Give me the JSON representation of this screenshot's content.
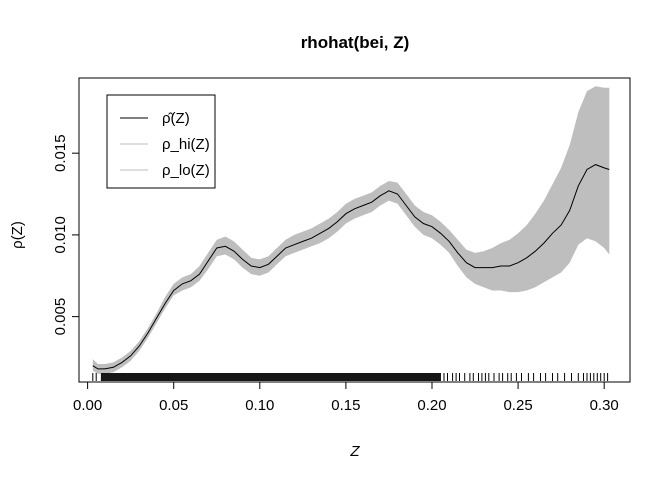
{
  "chart_data": {
    "type": "line",
    "title": "rhohat(bei, Z)",
    "xlabel": "Z",
    "ylabel": "ρ(Z)",
    "xlim": [
      -0.005,
      0.315
    ],
    "ylim": [
      0.001,
      0.0196
    ],
    "x_ticks": [
      0.0,
      0.05,
      0.1,
      0.15,
      0.2,
      0.25,
      0.3
    ],
    "x_tick_labels": [
      "0.00",
      "0.05",
      "0.10",
      "0.15",
      "0.20",
      "0.25",
      "0.30"
    ],
    "y_ticks": [
      0.005,
      0.01,
      0.015
    ],
    "y_tick_labels": [
      "0.005",
      "0.010",
      "0.015"
    ],
    "legend": {
      "position": "top-left",
      "entries": [
        {
          "label": "ρ̂(Z)",
          "color": "#000000"
        },
        {
          "label": "ρ_hi(Z)",
          "color": "#bebebe"
        },
        {
          "label": "ρ_lo(Z)",
          "color": "#bebebe"
        }
      ]
    },
    "series": [
      {
        "name": "ρ̂(Z)",
        "color": "#000000",
        "x": [
          0.003,
          0.006,
          0.01,
          0.015,
          0.02,
          0.025,
          0.03,
          0.035,
          0.04,
          0.045,
          0.05,
          0.055,
          0.06,
          0.065,
          0.07,
          0.075,
          0.08,
          0.085,
          0.09,
          0.095,
          0.1,
          0.105,
          0.11,
          0.115,
          0.12,
          0.125,
          0.13,
          0.135,
          0.14,
          0.145,
          0.15,
          0.155,
          0.16,
          0.165,
          0.17,
          0.175,
          0.18,
          0.185,
          0.19,
          0.195,
          0.2,
          0.205,
          0.21,
          0.215,
          0.22,
          0.225,
          0.23,
          0.235,
          0.24,
          0.245,
          0.25,
          0.255,
          0.26,
          0.265,
          0.27,
          0.275,
          0.28,
          0.285,
          0.29,
          0.295,
          0.3,
          0.303
        ],
        "y": [
          0.002,
          0.0018,
          0.0018,
          0.0019,
          0.0022,
          0.0026,
          0.0032,
          0.004,
          0.0049,
          0.0058,
          0.0066,
          0.007,
          0.0072,
          0.0076,
          0.0084,
          0.0092,
          0.0093,
          0.009,
          0.0085,
          0.0081,
          0.008,
          0.0082,
          0.0087,
          0.0092,
          0.0094,
          0.0096,
          0.0098,
          0.0101,
          0.0104,
          0.0108,
          0.0113,
          0.0116,
          0.0118,
          0.012,
          0.0124,
          0.0127,
          0.0125,
          0.0118,
          0.0111,
          0.0107,
          0.0105,
          0.0101,
          0.0096,
          0.0089,
          0.0083,
          0.008,
          0.008,
          0.008,
          0.0081,
          0.0081,
          0.0083,
          0.0086,
          0.009,
          0.0095,
          0.0101,
          0.0106,
          0.0115,
          0.013,
          0.014,
          0.0143,
          0.0141,
          0.014
        ]
      },
      {
        "name": "ρ_hi(Z)",
        "color": "#bebebe",
        "x": [
          0.003,
          0.006,
          0.01,
          0.015,
          0.02,
          0.025,
          0.03,
          0.035,
          0.04,
          0.045,
          0.05,
          0.055,
          0.06,
          0.065,
          0.07,
          0.075,
          0.08,
          0.085,
          0.09,
          0.095,
          0.1,
          0.105,
          0.11,
          0.115,
          0.12,
          0.125,
          0.13,
          0.135,
          0.14,
          0.145,
          0.15,
          0.155,
          0.16,
          0.165,
          0.17,
          0.175,
          0.18,
          0.185,
          0.19,
          0.195,
          0.2,
          0.205,
          0.21,
          0.215,
          0.22,
          0.225,
          0.23,
          0.235,
          0.24,
          0.245,
          0.25,
          0.255,
          0.26,
          0.265,
          0.27,
          0.275,
          0.28,
          0.285,
          0.29,
          0.295,
          0.3,
          0.303
        ],
        "y": [
          0.0024,
          0.0021,
          0.0021,
          0.0022,
          0.0025,
          0.0029,
          0.0035,
          0.0043,
          0.0052,
          0.0062,
          0.007,
          0.0074,
          0.0076,
          0.0081,
          0.0089,
          0.0097,
          0.0099,
          0.0096,
          0.0091,
          0.0086,
          0.0085,
          0.0087,
          0.0092,
          0.0097,
          0.01,
          0.0102,
          0.0104,
          0.0107,
          0.011,
          0.0114,
          0.0119,
          0.0122,
          0.0124,
          0.0126,
          0.013,
          0.0133,
          0.0132,
          0.0125,
          0.0118,
          0.0114,
          0.0112,
          0.0108,
          0.0103,
          0.0097,
          0.0091,
          0.0089,
          0.009,
          0.0092,
          0.0095,
          0.0097,
          0.0101,
          0.0106,
          0.0113,
          0.0121,
          0.0131,
          0.0141,
          0.0155,
          0.0175,
          0.0188,
          0.0191,
          0.019,
          0.019
        ]
      },
      {
        "name": "ρ_lo(Z)",
        "color": "#bebebe",
        "x": [
          0.003,
          0.006,
          0.01,
          0.015,
          0.02,
          0.025,
          0.03,
          0.035,
          0.04,
          0.045,
          0.05,
          0.055,
          0.06,
          0.065,
          0.07,
          0.075,
          0.08,
          0.085,
          0.09,
          0.095,
          0.1,
          0.105,
          0.11,
          0.115,
          0.12,
          0.125,
          0.13,
          0.135,
          0.14,
          0.145,
          0.15,
          0.155,
          0.16,
          0.165,
          0.17,
          0.175,
          0.18,
          0.185,
          0.19,
          0.195,
          0.2,
          0.205,
          0.21,
          0.215,
          0.22,
          0.225,
          0.23,
          0.235,
          0.24,
          0.245,
          0.25,
          0.255,
          0.26,
          0.265,
          0.27,
          0.275,
          0.28,
          0.285,
          0.29,
          0.295,
          0.3,
          0.303
        ],
        "y": [
          0.0017,
          0.0015,
          0.0015,
          0.0016,
          0.0019,
          0.0023,
          0.0029,
          0.0037,
          0.0046,
          0.0055,
          0.0063,
          0.0066,
          0.0068,
          0.0072,
          0.0079,
          0.0087,
          0.0088,
          0.0085,
          0.008,
          0.0076,
          0.0075,
          0.0077,
          0.0082,
          0.0087,
          0.0089,
          0.0091,
          0.0093,
          0.0095,
          0.0098,
          0.0102,
          0.0107,
          0.011,
          0.0112,
          0.0114,
          0.0118,
          0.0121,
          0.0119,
          0.0112,
          0.0105,
          0.01,
          0.0098,
          0.0094,
          0.0089,
          0.0081,
          0.0074,
          0.007,
          0.0068,
          0.0066,
          0.0066,
          0.0065,
          0.0065,
          0.0066,
          0.0068,
          0.0071,
          0.0074,
          0.0077,
          0.0083,
          0.0094,
          0.0098,
          0.0096,
          0.0092,
          0.0088
        ]
      }
    ],
    "rug": {
      "dense_range": [
        0.008,
        0.205
      ],
      "sparse_x": [
        0.003,
        0.005,
        0.207,
        0.209,
        0.212,
        0.214,
        0.216,
        0.219,
        0.222,
        0.224,
        0.227,
        0.229,
        0.231,
        0.233,
        0.236,
        0.239,
        0.241,
        0.244,
        0.246,
        0.249,
        0.252,
        0.256,
        0.259,
        0.263,
        0.266,
        0.27,
        0.273,
        0.277,
        0.281,
        0.285,
        0.288,
        0.29,
        0.292,
        0.294,
        0.296,
        0.298,
        0.3,
        0.302
      ]
    }
  }
}
